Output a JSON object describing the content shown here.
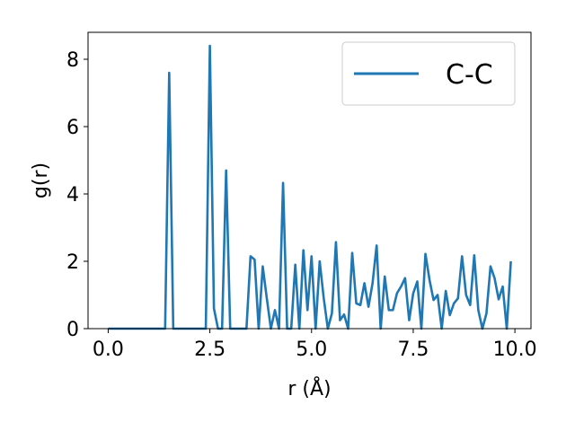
{
  "chart_data": {
    "type": "line",
    "xlabel": "r (Å)",
    "ylabel": "g(r)",
    "xlim": [
      -0.495,
      10.395
    ],
    "ylim": [
      0,
      8.8
    ],
    "xticks": [
      0.0,
      2.5,
      5.0,
      7.5,
      10.0
    ],
    "xtick_labels": [
      "0.0",
      "2.5",
      "5.0",
      "7.5",
      "10.0"
    ],
    "yticks": [
      0,
      2,
      4,
      6,
      8
    ],
    "ytick_labels": [
      "0",
      "2",
      "4",
      "6",
      "8"
    ],
    "legend": {
      "location": "upper right"
    },
    "series": [
      {
        "name": "C-C",
        "color": "#1f77b4",
        "x": [
          0.0,
          1.4,
          1.5,
          1.6,
          2.4,
          2.5,
          2.6,
          2.7,
          2.8,
          2.9,
          3.0,
          3.1,
          3.2,
          3.3,
          3.4,
          3.5,
          3.6,
          3.7,
          3.8,
          3.9,
          4.0,
          4.1,
          4.2,
          4.3,
          4.4,
          4.5,
          4.6,
          4.7,
          4.8,
          4.9,
          5.0,
          5.1,
          5.2,
          5.3,
          5.4,
          5.5,
          5.6,
          5.7,
          5.8,
          5.9,
          6.0,
          6.1,
          6.2,
          6.3,
          6.4,
          6.5,
          6.6,
          6.7,
          6.8,
          6.9,
          7.0,
          7.1,
          7.2,
          7.3,
          7.4,
          7.5,
          7.6,
          7.7,
          7.8,
          7.9,
          8.0,
          8.1,
          8.2,
          8.3,
          8.4,
          8.5,
          8.6,
          8.7,
          8.8,
          8.9,
          9.0,
          9.1,
          9.2,
          9.3,
          9.4,
          9.5,
          9.6,
          9.7,
          9.8,
          9.9
        ],
        "y": [
          0,
          0,
          7.6,
          0,
          0,
          8.4,
          0.6,
          0,
          0,
          4.7,
          0,
          0,
          0,
          0,
          0,
          2.15,
          2.05,
          0,
          1.85,
          0.9,
          0,
          0.55,
          0,
          4.33,
          0,
          0,
          1.9,
          0,
          2.33,
          0.55,
          2.15,
          0,
          2.0,
          0.9,
          0,
          0.45,
          2.57,
          0.25,
          0.42,
          0,
          2.25,
          0.75,
          0.7,
          1.35,
          0.65,
          1.35,
          2.47,
          0,
          1.55,
          0.55,
          0.55,
          1.05,
          1.25,
          1.5,
          0.25,
          1.05,
          1.4,
          0,
          2.22,
          1.45,
          0.85,
          1.0,
          0,
          1.12,
          0.4,
          0.75,
          0.9,
          2.15,
          1.0,
          0.7,
          2.18,
          0.55,
          0,
          0.45,
          1.85,
          1.5,
          0.87,
          1.25,
          0,
          2.0
        ]
      }
    ]
  }
}
